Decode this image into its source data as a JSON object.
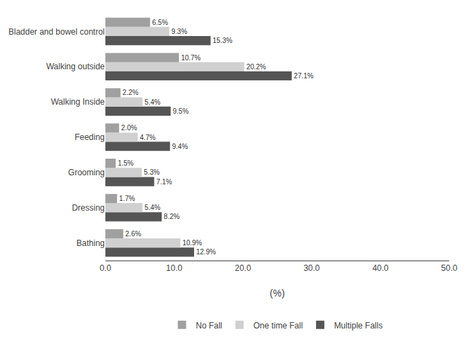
{
  "chart_data": {
    "type": "bar",
    "orientation": "horizontal",
    "categories": [
      "Bathing",
      "Dressing",
      "Grooming",
      "Feeding",
      "Walking Inside",
      "Walking outside",
      "Bladder and bowel control"
    ],
    "series": [
      {
        "name": "No Fall",
        "color": "#a0a0a0",
        "values": [
          2.6,
          1.7,
          1.5,
          2.0,
          2.2,
          10.7,
          6.5
        ],
        "value_labels": [
          "2.6%",
          "1.7%",
          "1.5%",
          "2.0%",
          "2.2%",
          "10.7%",
          "6.5%"
        ]
      },
      {
        "name": "One time Fall",
        "color": "#d0d0d0",
        "values": [
          10.9,
          5.4,
          5.3,
          4.7,
          5.4,
          20.2,
          9.3
        ],
        "value_labels": [
          "10.9%",
          "5.4%",
          "5.3%",
          "4.7%",
          "5.4%",
          "20.2%",
          "9.3%"
        ]
      },
      {
        "name": "Multiple Falls",
        "color": "#555555",
        "values": [
          12.9,
          8.2,
          7.1,
          9.4,
          9.5,
          27.1,
          15.3
        ],
        "value_labels": [
          "12.9%",
          "8.2%",
          "7.1%",
          "9.4%",
          "9.5%",
          "27.1%",
          "15.3%"
        ]
      }
    ],
    "xlabel": "(%)",
    "xlim": [
      0,
      50
    ],
    "xticks": [
      {
        "value": 0,
        "label": "0.0"
      },
      {
        "value": 10,
        "label": "10.0"
      },
      {
        "value": 20,
        "label": "20.0"
      },
      {
        "value": 30,
        "label": "30.0"
      },
      {
        "value": 40,
        "label": "40.0"
      },
      {
        "value": 50,
        "label": "50.0"
      }
    ],
    "data_labels": true,
    "grid": false,
    "legend": "bottom"
  }
}
